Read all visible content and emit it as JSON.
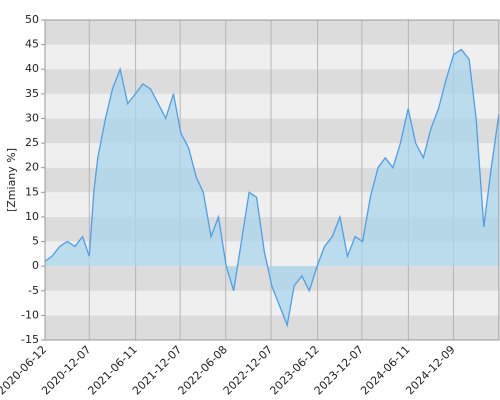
{
  "chart_data": {
    "type": "area",
    "y_label": "[Zmiany %]",
    "x": [
      "2020-06-12",
      "2020-07-10",
      "2020-08-10",
      "2020-09-10",
      "2020-10-10",
      "2020-11-10",
      "2020-12-07",
      "2020-12-25",
      "2021-01-10",
      "2021-02-10",
      "2021-03-10",
      "2021-04-10",
      "2021-05-10",
      "2021-06-10",
      "2021-07-10",
      "2021-08-10",
      "2021-09-10",
      "2021-10-10",
      "2021-11-10",
      "2021-12-10",
      "2022-01-10",
      "2022-02-10",
      "2022-03-10",
      "2022-04-10",
      "2022-05-10",
      "2022-06-10",
      "2022-07-10",
      "2022-08-10",
      "2022-09-10",
      "2022-10-10",
      "2022-11-10",
      "2022-12-10",
      "2023-01-10",
      "2023-02-10",
      "2023-03-10",
      "2023-04-10",
      "2023-05-10",
      "2023-06-10",
      "2023-07-10",
      "2023-08-10",
      "2023-09-10",
      "2023-10-10",
      "2023-11-10",
      "2023-12-10",
      "2024-01-10",
      "2024-02-10",
      "2024-03-10",
      "2024-04-10",
      "2024-05-10",
      "2024-06-10",
      "2024-07-10",
      "2024-08-10",
      "2024-09-10",
      "2024-10-10",
      "2024-11-10",
      "2024-12-10",
      "2025-01-10",
      "2025-02-10",
      "2025-03-10",
      "2025-04-10",
      "2025-05-10",
      "2025-06-10"
    ],
    "series": [
      {
        "name": "Zmiany",
        "color": "#4d9fe8",
        "fill": "#a9d6ec",
        "values": [
          1,
          2,
          4,
          5,
          4,
          6,
          2,
          15,
          22,
          30,
          36,
          40,
          33,
          35,
          37,
          36,
          33,
          30,
          35,
          27,
          24,
          18,
          15,
          6,
          10,
          0,
          -5,
          5,
          15,
          14,
          3,
          -4,
          -8,
          -12,
          -4,
          -2,
          -5,
          0,
          4,
          6,
          10,
          2,
          6,
          5,
          14,
          20,
          22,
          20,
          25,
          32,
          25,
          22,
          28,
          32,
          38,
          43,
          44,
          42,
          30,
          8,
          20,
          31
        ]
      }
    ],
    "xlim": [
      "2020-06-12",
      "2025-06-10"
    ],
    "xticks": [
      "2020-06-12",
      "2020-12-07",
      "2021-06-11",
      "2021-12-07",
      "2022-06-08",
      "2022-12-07",
      "2023-06-12",
      "2023-12-07",
      "2024-06-11",
      "2024-12-09"
    ],
    "ylim": [
      -15,
      50
    ],
    "yticks": [
      -15,
      -10,
      -5,
      0,
      5,
      10,
      15,
      20,
      25,
      30,
      35,
      40,
      45,
      50
    ],
    "grid": true
  }
}
